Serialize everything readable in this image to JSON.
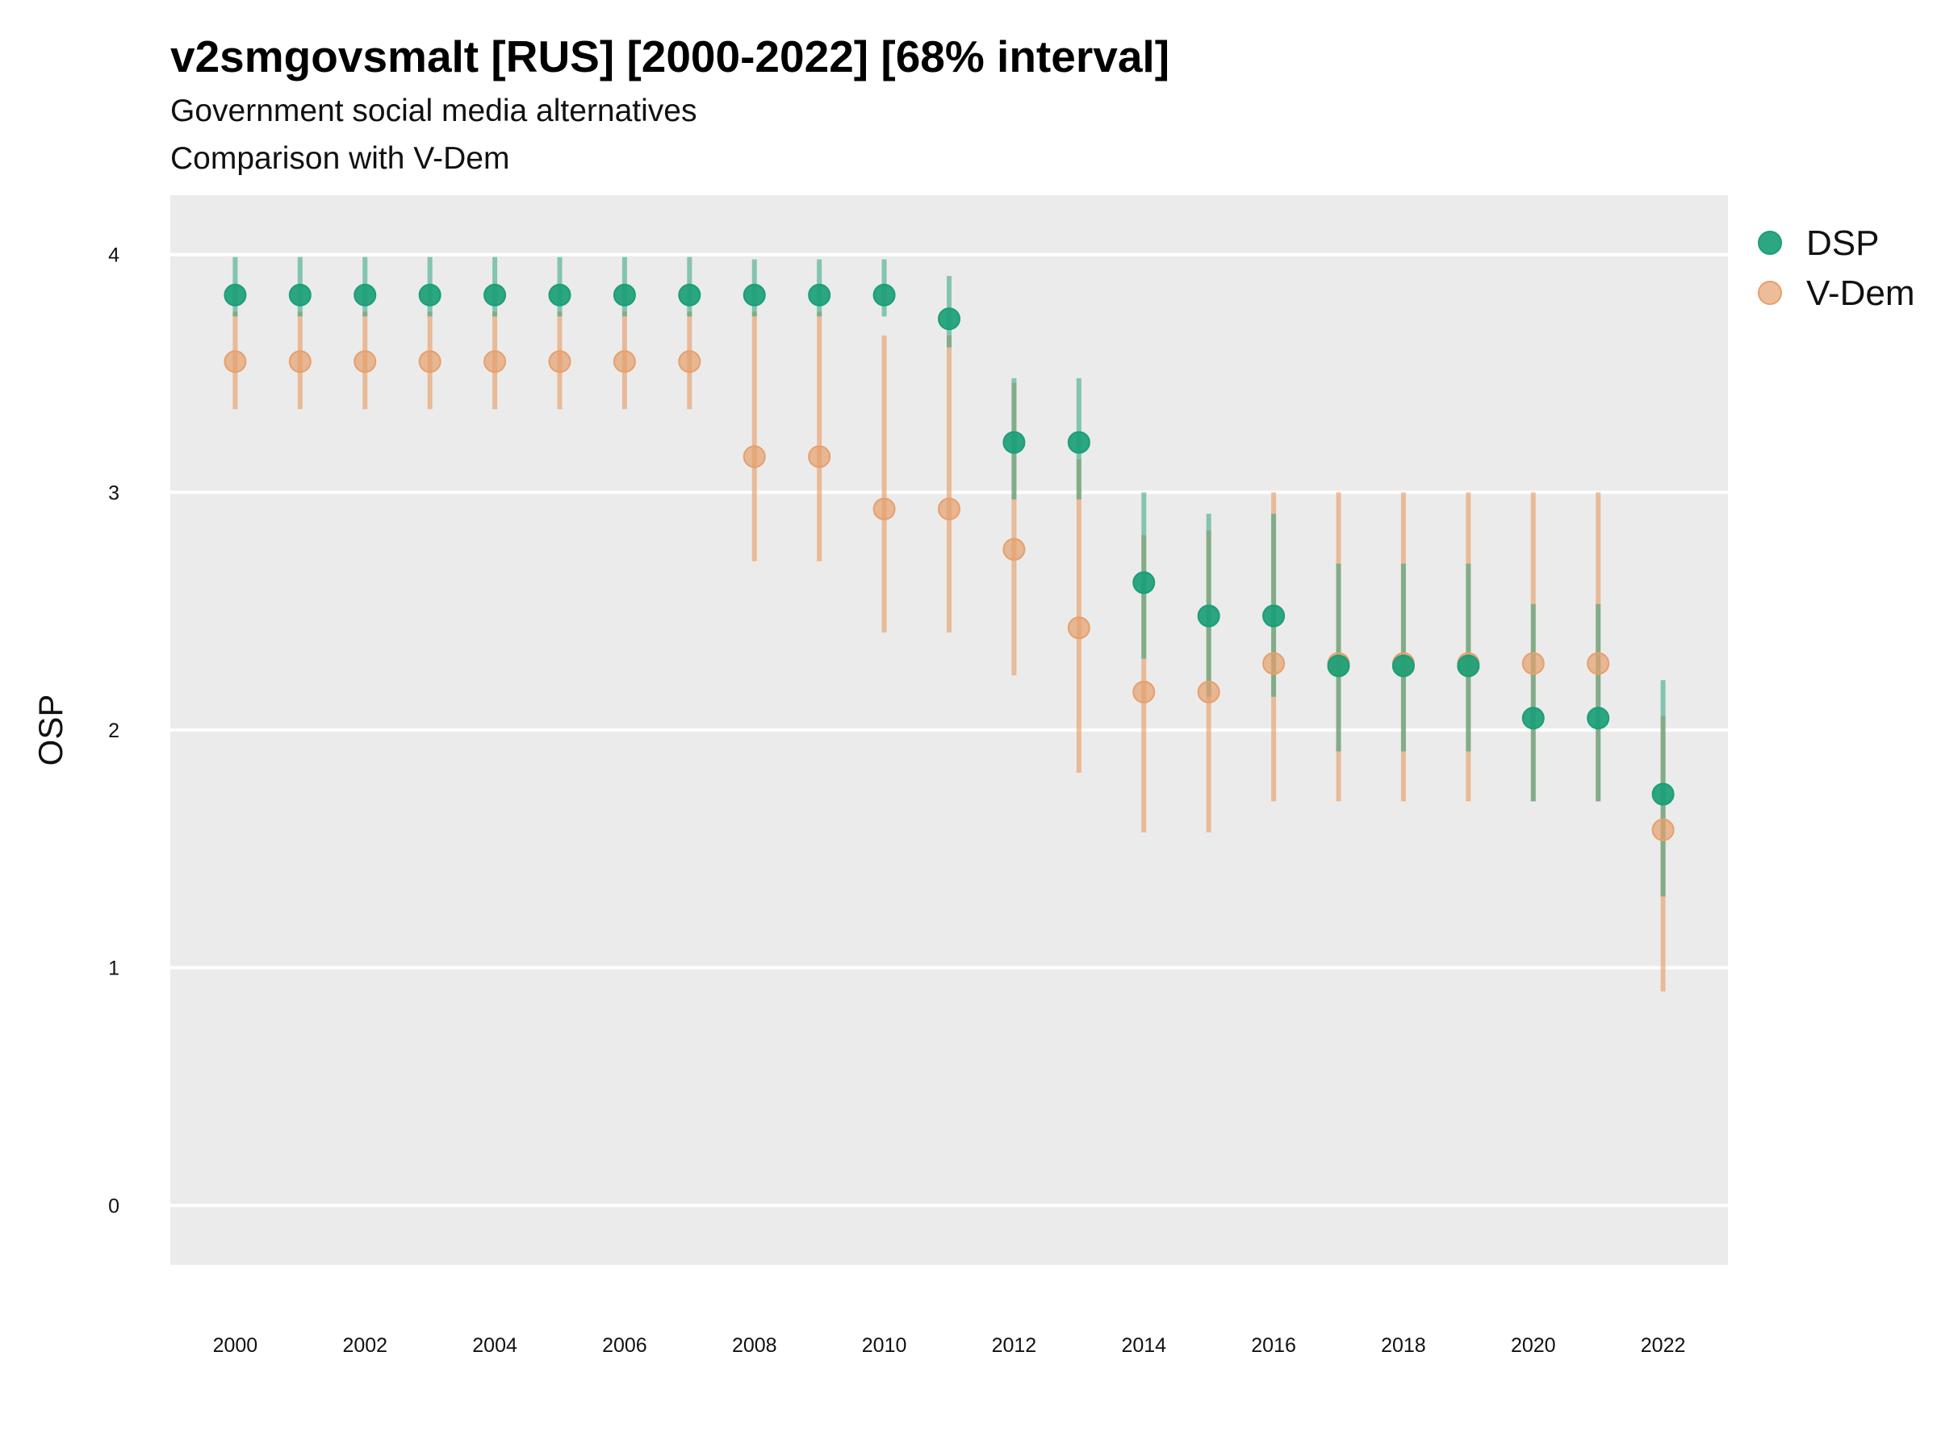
{
  "title": "v2smgovsmalt [RUS] [2000-2022] [68% interval]",
  "subtitle": "Government social media alternatives",
  "caption": "Comparison with V-Dem",
  "colors": {
    "DSP": "#1b9e77",
    "V-Dem": "#e6a06c",
    "panel": "#ebebeb",
    "grid": "#ffffff"
  },
  "chart_data": {
    "type": "scatter",
    "title": "v2smgovsmalt [RUS] [2000-2022] [68% interval]",
    "ylabel": "OSP",
    "xlabel": "",
    "ylim": [
      -0.25,
      4.25
    ],
    "xlim": [
      1999,
      2023
    ],
    "y_ticks": [
      0,
      1,
      2,
      3,
      4
    ],
    "x_ticks": [
      2000,
      2002,
      2004,
      2006,
      2008,
      2010,
      2012,
      2014,
      2016,
      2018,
      2020,
      2022
    ],
    "grid": true,
    "legend_position": "right",
    "x": [
      2000,
      2001,
      2002,
      2003,
      2004,
      2005,
      2006,
      2007,
      2008,
      2009,
      2010,
      2011,
      2012,
      2013,
      2014,
      2015,
      2016,
      2017,
      2018,
      2019,
      2020,
      2021,
      2022
    ],
    "series": [
      {
        "name": "DSP",
        "values": [
          3.83,
          3.83,
          3.83,
          3.83,
          3.83,
          3.83,
          3.83,
          3.83,
          3.83,
          3.83,
          3.83,
          3.73,
          3.21,
          3.21,
          2.62,
          2.48,
          2.48,
          2.27,
          2.27,
          2.27,
          2.05,
          2.05,
          1.73
        ],
        "lower": [
          3.74,
          3.74,
          3.74,
          3.74,
          3.74,
          3.74,
          3.74,
          3.74,
          3.74,
          3.74,
          3.74,
          3.61,
          2.97,
          2.97,
          2.3,
          2.14,
          2.14,
          1.91,
          1.91,
          1.91,
          1.7,
          1.7,
          1.3
        ],
        "upper": [
          3.99,
          3.99,
          3.99,
          3.99,
          3.99,
          3.99,
          3.99,
          3.99,
          3.98,
          3.98,
          3.98,
          3.91,
          3.48,
          3.48,
          3.0,
          2.91,
          2.91,
          2.7,
          2.7,
          2.7,
          2.53,
          2.53,
          2.21
        ]
      },
      {
        "name": "V-Dem",
        "values": [
          3.55,
          3.55,
          3.55,
          3.55,
          3.55,
          3.55,
          3.55,
          3.55,
          3.15,
          3.15,
          2.93,
          2.93,
          2.76,
          2.43,
          2.16,
          2.16,
          2.28,
          2.28,
          2.28,
          2.28,
          2.28,
          2.28,
          1.58
        ],
        "lower": [
          3.35,
          3.35,
          3.35,
          3.35,
          3.35,
          3.35,
          3.35,
          3.35,
          2.71,
          2.71,
          2.41,
          2.41,
          2.23,
          1.82,
          1.57,
          1.57,
          1.7,
          1.7,
          1.7,
          1.7,
          1.7,
          1.7,
          0.9
        ],
        "upper": [
          3.76,
          3.76,
          3.76,
          3.76,
          3.76,
          3.76,
          3.76,
          3.76,
          3.76,
          3.76,
          3.66,
          3.66,
          3.46,
          3.14,
          2.82,
          2.84,
          3.0,
          3.0,
          3.0,
          3.0,
          3.0,
          3.0,
          2.06
        ]
      }
    ]
  }
}
